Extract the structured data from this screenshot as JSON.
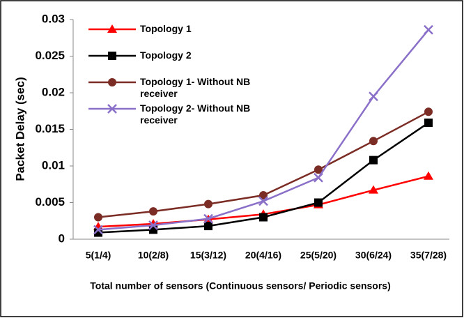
{
  "chart_data": {
    "type": "line",
    "y_label": "Packet Delay (sec)",
    "x_label": "Total number of sensors (Continuous sensors/ Periodic sensors)",
    "categories": [
      "5(1/4)",
      "10(2/8)",
      "15(3/12)",
      "20(4/16)",
      "25(5/20)",
      "30(6/24)",
      "35(7/28)"
    ],
    "series": [
      {
        "name": "Topology 1",
        "color": "#ff0000",
        "marker": "triangle",
        "values": [
          0.0017,
          0.0021,
          0.0027,
          0.0034,
          0.0047,
          0.0067,
          0.0086
        ]
      },
      {
        "name": "Topology 2",
        "color": "#000000",
        "marker": "square",
        "values": [
          0.0009,
          0.0013,
          0.0018,
          0.003,
          0.005,
          0.0108,
          0.0159
        ]
      },
      {
        "name": "Topology 1- Without NB receiver",
        "color": "#7b2c24",
        "marker": "circle",
        "values": [
          0.003,
          0.0038,
          0.0048,
          0.006,
          0.0095,
          0.0134,
          0.0174
        ]
      },
      {
        "name": "Topology 2- Without NB receiver",
        "color": "#8a70c8",
        "marker": "x",
        "values": [
          0.0013,
          0.0019,
          0.0028,
          0.0052,
          0.0084,
          0.0195,
          0.0286
        ]
      }
    ],
    "ylim": [
      0,
      0.03
    ],
    "yticks": [
      0,
      0.005,
      0.01,
      0.015,
      0.02,
      0.025,
      0.03
    ],
    "grid": false,
    "legend": "upper left"
  }
}
